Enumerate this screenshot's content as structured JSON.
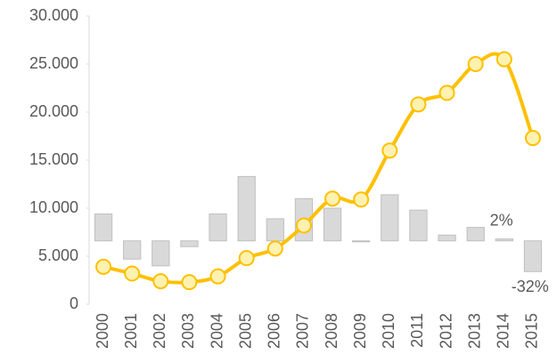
{
  "chart_data": {
    "type": "bar_line",
    "categories": [
      "2000",
      "2001",
      "2002",
      "2003",
      "2004",
      "2005",
      "2006",
      "2007",
      "2008",
      "2009",
      "2010",
      "2011",
      "2012",
      "2013",
      "2014",
      "2015"
    ],
    "series": [
      {
        "type": "bar",
        "axis": "y2",
        "color": "#d9d9d9",
        "values": [
          28,
          -19,
          -26,
          -6,
          28,
          67,
          23,
          44,
          34,
          -1,
          48,
          32,
          6,
          14,
          2,
          -32
        ],
        "value_labels": [
          null,
          null,
          null,
          null,
          null,
          null,
          null,
          null,
          null,
          null,
          null,
          null,
          null,
          null,
          "2%",
          "-32%"
        ]
      },
      {
        "type": "line",
        "color": "#ffc000",
        "marker_color": "#fff2b0",
        "values": [
          3900,
          3200,
          2400,
          2300,
          2900,
          4800,
          5800,
          8200,
          11000,
          10900,
          16000,
          20800,
          22000,
          25000,
          25500,
          17300
        ]
      }
    ],
    "ylim": [
      0,
      30000
    ],
    "yticks": [
      0,
      {
        "value": 5000,
        "label": "5.000"
      },
      {
        "value": 10000,
        "label": "10.000"
      },
      {
        "value": 15000,
        "label": "15.000"
      },
      {
        "value": 20000,
        "label": "20.000"
      },
      {
        "value": 25000,
        "label": "25.000"
      },
      {
        "value": 30000,
        "label": "30.000"
      }
    ],
    "y2lim": [
      -66,
      234
    ],
    "grid": false
  }
}
